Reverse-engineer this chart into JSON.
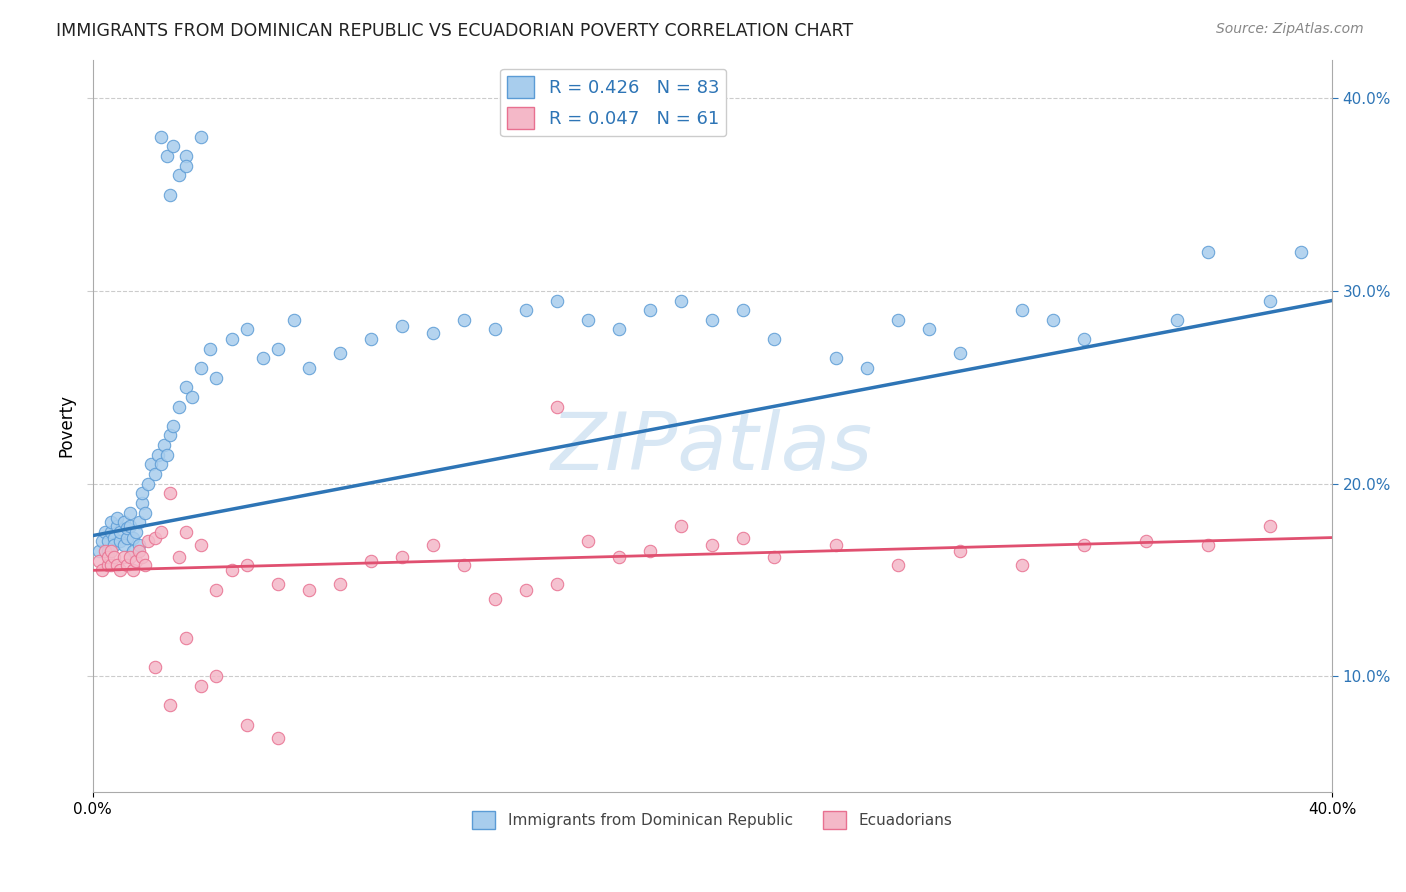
{
  "title": "IMMIGRANTS FROM DOMINICAN REPUBLIC VS ECUADORIAN POVERTY CORRELATION CHART",
  "source": "Source: ZipAtlas.com",
  "ylabel": "Poverty",
  "legend_blue_R": "R = 0.426",
  "legend_blue_N": "N = 83",
  "legend_pink_R": "R = 0.047",
  "legend_pink_N": "N = 61",
  "legend_label_blue": "Immigrants from Dominican Republic",
  "legend_label_pink": "Ecuadorians",
  "blue_scatter_x": [
    0.002,
    0.003,
    0.004,
    0.005,
    0.005,
    0.006,
    0.006,
    0.007,
    0.007,
    0.008,
    0.008,
    0.009,
    0.009,
    0.01,
    0.01,
    0.011,
    0.011,
    0.012,
    0.012,
    0.013,
    0.013,
    0.014,
    0.015,
    0.015,
    0.016,
    0.016,
    0.017,
    0.018,
    0.019,
    0.02,
    0.021,
    0.022,
    0.023,
    0.024,
    0.025,
    0.026,
    0.028,
    0.03,
    0.032,
    0.035,
    0.038,
    0.04,
    0.045,
    0.05,
    0.055,
    0.06,
    0.065,
    0.07,
    0.08,
    0.09,
    0.1,
    0.11,
    0.12,
    0.13,
    0.14,
    0.15,
    0.16,
    0.17,
    0.18,
    0.19,
    0.2,
    0.21,
    0.22,
    0.24,
    0.25,
    0.26,
    0.27,
    0.28,
    0.3,
    0.31,
    0.32,
    0.35,
    0.36,
    0.38,
    0.39,
    0.025,
    0.03,
    0.035,
    0.022,
    0.024,
    0.026,
    0.028,
    0.03
  ],
  "blue_scatter_y": [
    0.165,
    0.17,
    0.175,
    0.165,
    0.17,
    0.175,
    0.18,
    0.172,
    0.168,
    0.178,
    0.182,
    0.17,
    0.175,
    0.168,
    0.18,
    0.172,
    0.177,
    0.185,
    0.178,
    0.165,
    0.172,
    0.175,
    0.18,
    0.168,
    0.19,
    0.195,
    0.185,
    0.2,
    0.21,
    0.205,
    0.215,
    0.21,
    0.22,
    0.215,
    0.225,
    0.23,
    0.24,
    0.25,
    0.245,
    0.26,
    0.27,
    0.255,
    0.275,
    0.28,
    0.265,
    0.27,
    0.285,
    0.26,
    0.268,
    0.275,
    0.282,
    0.278,
    0.285,
    0.28,
    0.29,
    0.295,
    0.285,
    0.28,
    0.29,
    0.295,
    0.285,
    0.29,
    0.275,
    0.265,
    0.26,
    0.285,
    0.28,
    0.268,
    0.29,
    0.285,
    0.275,
    0.285,
    0.32,
    0.295,
    0.32,
    0.35,
    0.37,
    0.38,
    0.38,
    0.37,
    0.375,
    0.36,
    0.365
  ],
  "pink_scatter_x": [
    0.002,
    0.003,
    0.004,
    0.005,
    0.005,
    0.006,
    0.006,
    0.007,
    0.008,
    0.009,
    0.01,
    0.011,
    0.012,
    0.013,
    0.014,
    0.015,
    0.016,
    0.017,
    0.018,
    0.02,
    0.022,
    0.025,
    0.028,
    0.03,
    0.035,
    0.04,
    0.045,
    0.05,
    0.06,
    0.07,
    0.08,
    0.09,
    0.1,
    0.11,
    0.12,
    0.13,
    0.14,
    0.15,
    0.16,
    0.17,
    0.18,
    0.19,
    0.2,
    0.21,
    0.22,
    0.24,
    0.26,
    0.28,
    0.3,
    0.32,
    0.34,
    0.36,
    0.38,
    0.02,
    0.025,
    0.03,
    0.035,
    0.04,
    0.05,
    0.06,
    0.15
  ],
  "pink_scatter_y": [
    0.16,
    0.155,
    0.165,
    0.158,
    0.162,
    0.158,
    0.165,
    0.162,
    0.158,
    0.155,
    0.162,
    0.158,
    0.162,
    0.155,
    0.16,
    0.165,
    0.162,
    0.158,
    0.17,
    0.172,
    0.175,
    0.195,
    0.162,
    0.175,
    0.168,
    0.145,
    0.155,
    0.158,
    0.148,
    0.145,
    0.148,
    0.16,
    0.162,
    0.168,
    0.158,
    0.14,
    0.145,
    0.148,
    0.17,
    0.162,
    0.165,
    0.178,
    0.168,
    0.172,
    0.162,
    0.168,
    0.158,
    0.165,
    0.158,
    0.168,
    0.17,
    0.168,
    0.178,
    0.105,
    0.085,
    0.12,
    0.095,
    0.1,
    0.075,
    0.068,
    0.24
  ],
  "blue_line_x": [
    0.0,
    0.4
  ],
  "blue_line_y": [
    0.173,
    0.295
  ],
  "pink_line_x": [
    0.0,
    0.4
  ],
  "pink_line_y": [
    0.155,
    0.172
  ],
  "blue_dot_color": "#A8CDED",
  "blue_edge_color": "#5B9BD5",
  "pink_dot_color": "#F4B8C8",
  "pink_edge_color": "#E87090",
  "blue_line_color": "#2E75B6",
  "pink_line_color": "#E05070",
  "watermark": "ZIPatlas",
  "xlim": [
    0.0,
    0.4
  ],
  "ylim": [
    0.04,
    0.42
  ],
  "background_color": "#FFFFFF",
  "grid_color": "#CCCCCC"
}
